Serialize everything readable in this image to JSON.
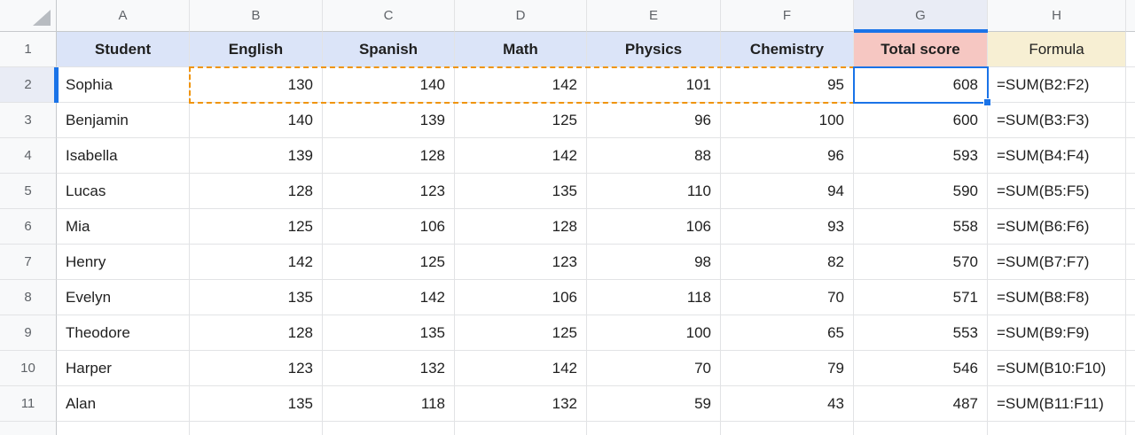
{
  "grid": {
    "column_letters": [
      "A",
      "B",
      "C",
      "D",
      "E",
      "F",
      "G",
      "H"
    ],
    "row_numbers": [
      "1",
      "2",
      "3",
      "4",
      "5",
      "6",
      "7",
      "8",
      "9",
      "10",
      "11"
    ],
    "selected_column": "G",
    "selected_row": "2",
    "active_cell": "G2",
    "dashed_range": "B2:F2"
  },
  "header_row": [
    {
      "label": "Student",
      "bg": "blue",
      "bold": true
    },
    {
      "label": "English",
      "bg": "blue",
      "bold": true
    },
    {
      "label": "Spanish",
      "bg": "blue",
      "bold": true
    },
    {
      "label": "Math",
      "bg": "blue",
      "bold": true
    },
    {
      "label": "Physics",
      "bg": "blue",
      "bold": true
    },
    {
      "label": "Chemistry",
      "bg": "blue",
      "bold": true
    },
    {
      "label": "Total score",
      "bg": "pink",
      "bold": true
    },
    {
      "label": "Formula",
      "bg": "cream",
      "bold": false
    }
  ],
  "rows": [
    {
      "cells": [
        "Sophia",
        "130",
        "140",
        "142",
        "101",
        "95",
        "608",
        "=SUM(B2:F2)"
      ]
    },
    {
      "cells": [
        "Benjamin",
        "140",
        "139",
        "125",
        "96",
        "100",
        "600",
        "=SUM(B3:F3)"
      ]
    },
    {
      "cells": [
        "Isabella",
        "139",
        "128",
        "142",
        "88",
        "96",
        "593",
        "=SUM(B4:F4)"
      ]
    },
    {
      "cells": [
        "Lucas",
        "128",
        "123",
        "135",
        "110",
        "94",
        "590",
        "=SUM(B5:F5)"
      ]
    },
    {
      "cells": [
        "Mia",
        "125",
        "106",
        "128",
        "106",
        "93",
        "558",
        "=SUM(B6:F6)"
      ]
    },
    {
      "cells": [
        "Henry",
        "142",
        "125",
        "123",
        "98",
        "82",
        "570",
        "=SUM(B7:F7)"
      ]
    },
    {
      "cells": [
        "Evelyn",
        "135",
        "142",
        "106",
        "118",
        "70",
        "571",
        "=SUM(B8:F8)"
      ]
    },
    {
      "cells": [
        "Theodore",
        "128",
        "135",
        "125",
        "100",
        "65",
        "553",
        "=SUM(B9:F9)"
      ]
    },
    {
      "cells": [
        "Harper",
        "123",
        "132",
        "142",
        "70",
        "79",
        "546",
        "=SUM(B10:F10)"
      ]
    },
    {
      "cells": [
        "Alan",
        "135",
        "118",
        "132",
        "59",
        "43",
        "487",
        "=SUM(B11:F11)"
      ]
    }
  ],
  "colors": {
    "selection_blue": "#1a73e8",
    "marching_ants_orange": "#f09409",
    "header_fill_blue": "#dbe4f8",
    "header_fill_pink": "#f6c7c2",
    "header_fill_cream": "#f7efd3",
    "selected_header_fill": "#e9ecf5",
    "header_strip_fill": "#f8f9fa"
  }
}
